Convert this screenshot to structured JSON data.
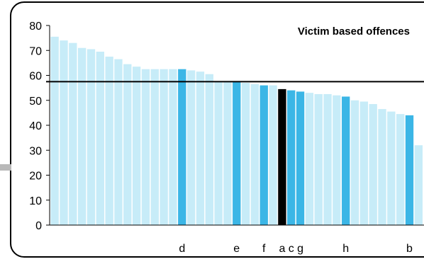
{
  "chart_data": {
    "type": "bar",
    "title": "Victim based offences",
    "ylim": [
      0,
      80
    ],
    "yticks": [
      0,
      10,
      20,
      30,
      40,
      50,
      60,
      70,
      80
    ],
    "average_line": 57.5,
    "grid": false,
    "legend": "none",
    "colors": {
      "default": "#c7ecf8",
      "highlight": "#3bb6e6",
      "selected": "#000000"
    },
    "values": [
      75.5,
      74,
      73,
      71,
      70.5,
      69.5,
      67.5,
      66.5,
      64.5,
      63.5,
      62.5,
      62.5,
      62.5,
      62.5,
      62.5,
      62,
      61.5,
      60.5,
      57.5,
      57.5,
      57.5,
      57,
      56.5,
      56,
      56,
      54.5,
      54,
      53.5,
      53,
      52.5,
      52.5,
      52,
      51.5,
      50,
      49.5,
      48.5,
      46.5,
      45.5,
      44.5,
      44,
      32
    ],
    "labels": [
      "",
      "",
      "",
      "",
      "",
      "",
      "",
      "",
      "",
      "",
      "",
      "",
      "",
      "",
      "d",
      "",
      "",
      "",
      "",
      "",
      "e",
      "",
      "",
      "f",
      "",
      "a",
      "c",
      "g",
      "",
      "",
      "",
      "",
      "h",
      "",
      "",
      "",
      "",
      "",
      "",
      "b",
      ""
    ],
    "styles": [
      "default",
      "default",
      "default",
      "default",
      "default",
      "default",
      "default",
      "default",
      "default",
      "default",
      "default",
      "default",
      "default",
      "default",
      "highlight",
      "default",
      "default",
      "default",
      "default",
      "default",
      "highlight",
      "default",
      "default",
      "highlight",
      "default",
      "selected",
      "highlight",
      "highlight",
      "default",
      "default",
      "default",
      "default",
      "highlight",
      "default",
      "default",
      "default",
      "default",
      "default",
      "default",
      "highlight",
      "default"
    ]
  }
}
